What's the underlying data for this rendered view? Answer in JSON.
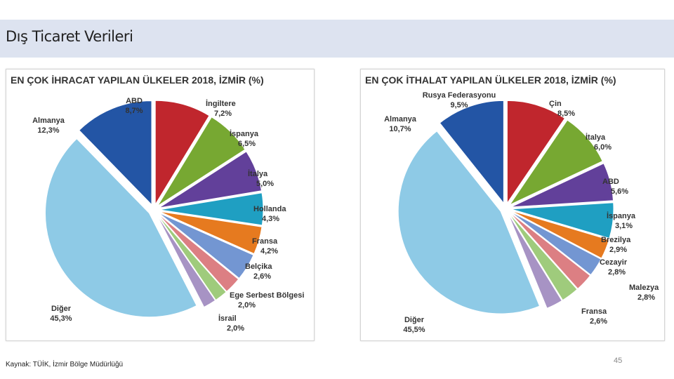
{
  "header": {
    "title": "Dış Ticaret Verileri"
  },
  "footer": {
    "source": "Kaynak: TÜİK, İzmir Bölge Müdürlüğü",
    "page_number": "45"
  },
  "chart_data": [
    {
      "type": "pie",
      "title": "EN ÇOK İHRACAT YAPILAN ÜLKELER 2018, İZMİR (%)",
      "categories": [
        "ABD",
        "İngiltere",
        "İspanya",
        "İtalya",
        "Hollanda",
        "Fransa",
        "Belçika",
        "Ege Serbest Bölgesi",
        "İsrail",
        "Diğer",
        "Almanya"
      ],
      "values": [
        8.7,
        7.2,
        6.5,
        5.0,
        4.3,
        4.2,
        2.6,
        2.0,
        2.0,
        45.3,
        12.3
      ],
      "value_labels": [
        "8,7%",
        "7,2%",
        "6,5%",
        "5,0%",
        "4,3%",
        "4,2%",
        "2,6%",
        "2,0%",
        "2,0%",
        "45,3%",
        "12,3%"
      ],
      "colors": [
        "#c0262d",
        "#77a832",
        "#62409a",
        "#1f9fc2",
        "#e67a1f",
        "#7396d2",
        "#dc7f83",
        "#9fcb7c",
        "#a793c4",
        "#8ecae6",
        "#2355a5"
      ]
    },
    {
      "type": "pie",
      "title": "EN ÇOK İTHALAT YAPILAN ÜLKELER 2018, İZMİR (%)",
      "categories": [
        "Rusya Federasyonu",
        "Çin",
        "İtalya",
        "ABD",
        "İspanya",
        "Brezilya",
        "Cezayir",
        "Malezya",
        "Fransa",
        "Diğer",
        "Almanya"
      ],
      "values": [
        9.5,
        8.5,
        6.0,
        5.6,
        3.1,
        2.9,
        2.8,
        2.8,
        2.6,
        45.5,
        10.7
      ],
      "value_labels": [
        "9,5%",
        "8,5%",
        "6,0%",
        "5,6%",
        "3,1%",
        "2,9%",
        "2,8%",
        "2,8%",
        "2,6%",
        "45,5%",
        "10,7%"
      ],
      "colors": [
        "#c0262d",
        "#77a832",
        "#62409a",
        "#1f9fc2",
        "#e67a1f",
        "#7396d2",
        "#dc7f83",
        "#9fcb7c",
        "#a793c4",
        "#8ecae6",
        "#2355a5"
      ]
    }
  ]
}
